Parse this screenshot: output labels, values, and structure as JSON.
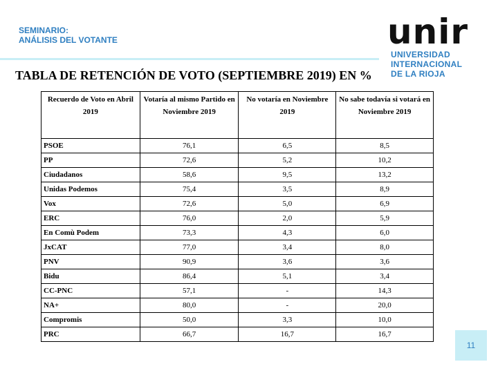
{
  "header": {
    "line1": "SEMINARIO:",
    "line2": "ANÁLISIS DEL VOTANTE"
  },
  "logo": {
    "wordmark": "unir",
    "line1": "UNIVERSIDAD",
    "line2": "INTERNACIONAL",
    "line3": "DE LA RIOJA",
    "colors": {
      "wordmark": "#111111",
      "subtitle": "#2f7fc1"
    }
  },
  "title": "TABLA DE RETENCIÓN DE VOTO (SEPTIEMBRE 2019) EN %",
  "table": {
    "headers": [
      "Recuerdo de Voto en Abril 2019",
      "Votaría al mismo Partido en Noviembre 2019",
      "No votaría en Noviembre 2019",
      "No sabe todavía si votará en Noviembre 2019"
    ],
    "rows": [
      [
        "PSOE",
        "76,1",
        "6,5",
        "8,5"
      ],
      [
        "PP",
        "72,6",
        "5,2",
        "10,2"
      ],
      [
        "Ciudadanos",
        "58,6",
        "9,5",
        "13,2"
      ],
      [
        "Unidas Podemos",
        "75,4",
        "3,5",
        "8,9"
      ],
      [
        "Vox",
        "72,6",
        "5,0",
        "6,9"
      ],
      [
        "ERC",
        "76,0",
        "2,0",
        "5,9"
      ],
      [
        "En Comù Podem",
        "73,3",
        "4,3",
        "6,0"
      ],
      [
        "JxCAT",
        "77,0",
        "3,4",
        "8,0"
      ],
      [
        "PNV",
        "90,9",
        "3,6",
        "3,6"
      ],
      [
        "Bidu",
        "86,4",
        "5,1",
        "3,4"
      ],
      [
        "CC-PNC",
        "57,1",
        "-",
        "14,3"
      ],
      [
        "NA+",
        "80,0",
        "-",
        "20,0"
      ],
      [
        "Compromis",
        "50,0",
        "3,3",
        "10,0"
      ],
      [
        "PRC",
        "66,7",
        "16,7",
        "16,7"
      ]
    ]
  },
  "page_number": "11",
  "colors": {
    "accent": "#2f7fc1",
    "light_band": "#c8eef6"
  }
}
